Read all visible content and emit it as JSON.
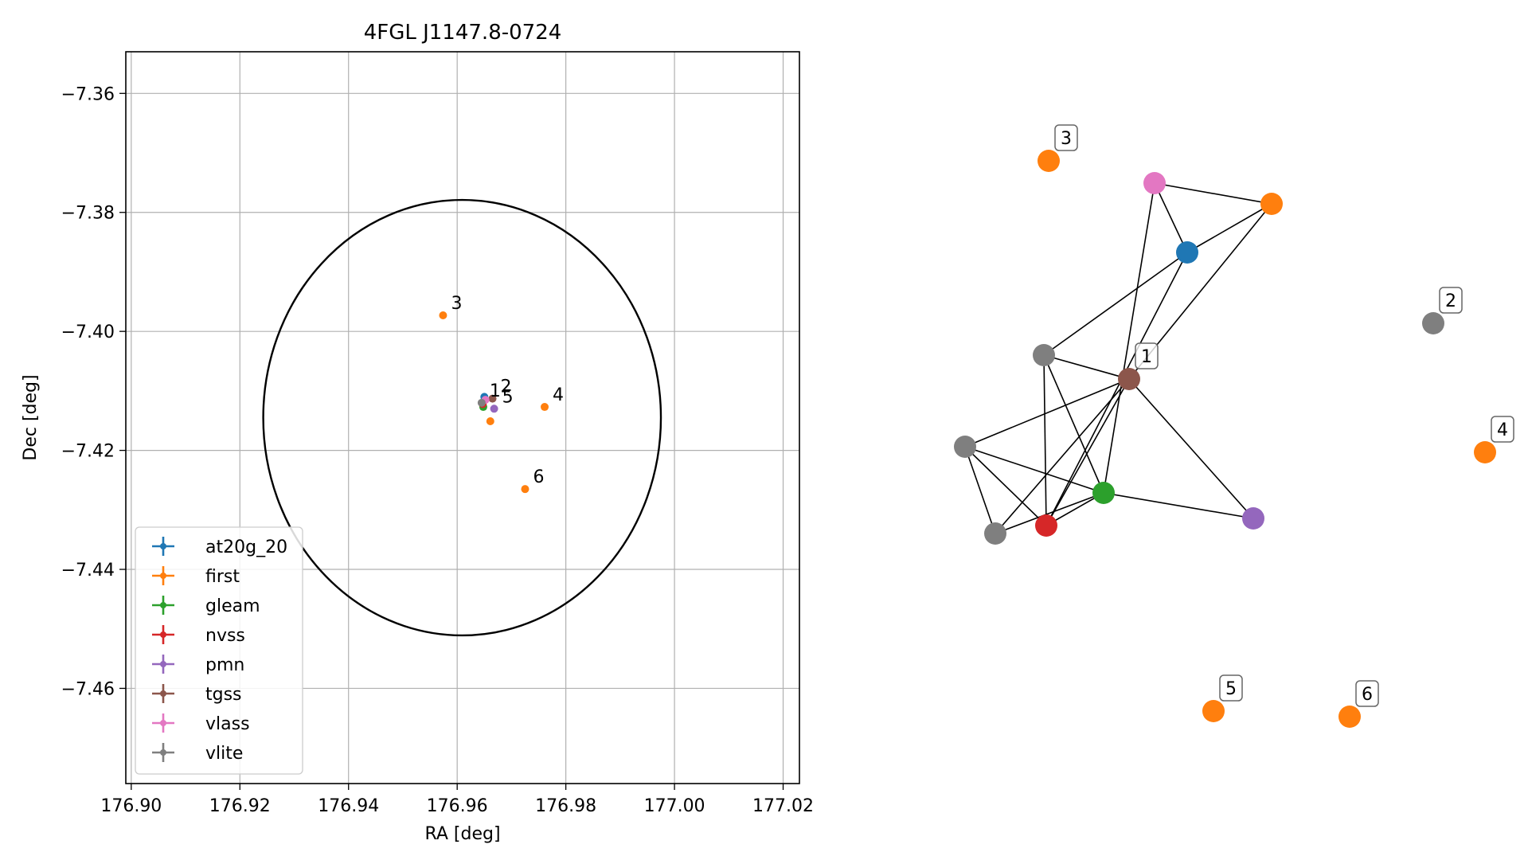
{
  "chart_data": [
    {
      "type": "scatter",
      "title": "4FGL J1147.8-0724",
      "xlabel": "RA [deg]",
      "ylabel": "Dec [deg]",
      "xlim": [
        176.899,
        177.023
      ],
      "ylim": [
        -7.476,
        -7.353
      ],
      "xticks": [
        {
          "v": 176.9,
          "label": "176.90"
        },
        {
          "v": 176.92,
          "label": "176.92"
        },
        {
          "v": 176.94,
          "label": "176.94"
        },
        {
          "v": 176.96,
          "label": "176.96"
        },
        {
          "v": 176.98,
          "label": "176.98"
        },
        {
          "v": 177.0,
          "label": "177.00"
        },
        {
          "v": 177.02,
          "label": "177.02"
        }
      ],
      "yticks": [
        {
          "v": -7.36,
          "label": "−7.36"
        },
        {
          "v": -7.38,
          "label": "−7.38"
        },
        {
          "v": -7.4,
          "label": "−7.40"
        },
        {
          "v": -7.42,
          "label": "−7.42"
        },
        {
          "v": -7.44,
          "label": "−7.44"
        },
        {
          "v": -7.46,
          "label": "−7.46"
        }
      ],
      "grid": true,
      "legend_position": "lower-left",
      "circle": {
        "center_ra": 176.9609,
        "center_dec": -7.4145,
        "radius_deg": 0.0366
      },
      "series": [
        {
          "name": "at20g_20",
          "color": "#1f77b4",
          "points": [
            {
              "ra": 176.965,
              "dec": -7.411
            }
          ]
        },
        {
          "name": "first",
          "color": "#ff7f0e",
          "points": [
            {
              "ra": 176.9574,
              "dec": -7.3973,
              "label": "3"
            },
            {
              "ra": 176.9761,
              "dec": -7.4127,
              "label": "4"
            },
            {
              "ra": 176.9661,
              "dec": -7.4151
            },
            {
              "ra": 176.9725,
              "dec": -7.4265,
              "label": "6"
            }
          ]
        },
        {
          "name": "gleam",
          "color": "#2ca02c",
          "points": [
            {
              "ra": 176.9648,
              "dec": -7.4127
            }
          ]
        },
        {
          "name": "nvss",
          "color": "#d62728",
          "points": [
            {
              "ra": 176.9647,
              "dec": -7.4122
            }
          ]
        },
        {
          "name": "pmn",
          "color": "#9467bd",
          "points": [
            {
              "ra": 176.9668,
              "dec": -7.413,
              "label": "5"
            }
          ]
        },
        {
          "name": "tgss",
          "color": "#8c564b",
          "points": [
            {
              "ra": 176.9665,
              "dec": -7.4113,
              "label": "2"
            }
          ]
        },
        {
          "name": "vlass",
          "color": "#e377c2",
          "points": [
            {
              "ra": 176.9652,
              "dec": -7.4115
            }
          ]
        },
        {
          "name": "vlite",
          "color": "#7f7f7f",
          "points": [
            {
              "ra": 176.9645,
              "dec": -7.412,
              "label": "1"
            }
          ]
        }
      ]
    },
    {
      "type": "network",
      "nodes": [
        {
          "id": "n1",
          "color": "#1f77b4"
        },
        {
          "id": "n2",
          "color": "#ff7f0e"
        },
        {
          "id": "n3",
          "color": "#e377c2"
        },
        {
          "id": "n4",
          "color": "#7f7f7f"
        },
        {
          "id": "n5",
          "color": "#8c564b",
          "label": "1"
        },
        {
          "id": "n6",
          "color": "#7f7f7f"
        },
        {
          "id": "n7",
          "color": "#2ca02c"
        },
        {
          "id": "n8",
          "color": "#9467bd"
        },
        {
          "id": "n9",
          "color": "#d62728"
        },
        {
          "id": "n10",
          "color": "#7f7f7f"
        },
        {
          "id": "n11",
          "color": "#ff7f0e",
          "label": "3"
        },
        {
          "id": "n12",
          "color": "#7f7f7f",
          "label": "2"
        },
        {
          "id": "n13",
          "color": "#ff7f0e",
          "label": "4"
        },
        {
          "id": "n14",
          "color": "#ff7f0e",
          "label": "5"
        },
        {
          "id": "n15",
          "color": "#ff7f0e",
          "label": "6"
        }
      ],
      "edges": [
        [
          "n3",
          "n2"
        ],
        [
          "n3",
          "n1"
        ],
        [
          "n3",
          "n7"
        ],
        [
          "n2",
          "n1"
        ],
        [
          "n2",
          "n5"
        ],
        [
          "n1",
          "n4"
        ],
        [
          "n1",
          "n9"
        ],
        [
          "n4",
          "n5"
        ],
        [
          "n4",
          "n9"
        ],
        [
          "n4",
          "n7"
        ],
        [
          "n6",
          "n5"
        ],
        [
          "n6",
          "n7"
        ],
        [
          "n6",
          "n10"
        ],
        [
          "n6",
          "n9"
        ],
        [
          "n5",
          "n10"
        ],
        [
          "n5",
          "n9"
        ],
        [
          "n5",
          "n8"
        ],
        [
          "n7",
          "n8"
        ],
        [
          "n7",
          "n9"
        ],
        [
          "n7",
          "n10"
        ]
      ]
    }
  ]
}
